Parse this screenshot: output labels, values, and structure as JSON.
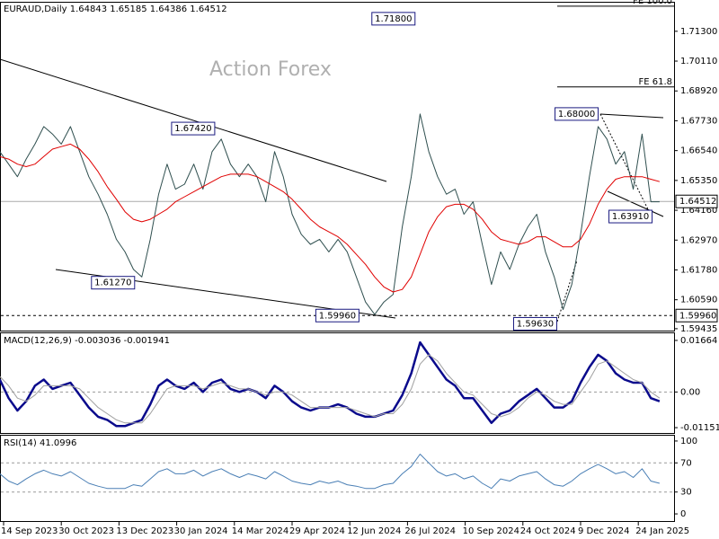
{
  "chart_data": [
    {
      "type": "line",
      "title": "EURAUD,Daily  1.64843 1.65185 1.64386 1.64512",
      "watermark": "Action Forex",
      "x": [
        "2023-09-11",
        "2023-09-18",
        "2023-09-25",
        "2023-10-02",
        "2023-10-09",
        "2023-10-16",
        "2023-10-23",
        "2023-10-30",
        "2023-11-06",
        "2023-11-13",
        "2023-11-20",
        "2023-11-27",
        "2023-12-04",
        "2023-12-11",
        "2023-12-18",
        "2023-12-25",
        "2024-01-01",
        "2024-01-08",
        "2024-01-15",
        "2024-01-22",
        "2024-01-29",
        "2024-02-05",
        "2024-02-12",
        "2024-02-19",
        "2024-02-26",
        "2024-03-04",
        "2024-03-11",
        "2024-03-18",
        "2024-03-25",
        "2024-04-01",
        "2024-04-08",
        "2024-04-15",
        "2024-04-22",
        "2024-04-29",
        "2024-05-06",
        "2024-05-13",
        "2024-05-20",
        "2024-05-27",
        "2024-06-03",
        "2024-06-10",
        "2024-06-17",
        "2024-06-24",
        "2024-07-01",
        "2024-07-08",
        "2024-07-15",
        "2024-07-22",
        "2024-07-29",
        "2024-08-05",
        "2024-08-12",
        "2024-08-19",
        "2024-08-26",
        "2024-09-02",
        "2024-09-09",
        "2024-09-16",
        "2024-09-23",
        "2024-09-30",
        "2024-10-07",
        "2024-10-14",
        "2024-10-21",
        "2024-10-28",
        "2024-11-04",
        "2024-11-11",
        "2024-11-18",
        "2024-11-25",
        "2024-12-02",
        "2024-12-09",
        "2024-12-16",
        "2024-12-23",
        "2024-12-30",
        "2025-01-06",
        "2025-01-13",
        "2025-01-20",
        "2025-01-27",
        "2025-02-03",
        "2025-02-10"
      ],
      "xticks": [
        {
          "value": "2023-09-14",
          "label": "14 Sep 2023"
        },
        {
          "value": "2023-10-30",
          "label": "30 Oct 2023"
        },
        {
          "value": "2023-12-13",
          "label": "13 Dec 2023"
        },
        {
          "value": "2024-01-30",
          "label": "30 Jan 2024"
        },
        {
          "value": "2024-03-14",
          "label": "14 Mar 2024"
        },
        {
          "value": "2024-04-29",
          "label": "29 Apr 2024"
        },
        {
          "value": "2024-06-12",
          "label": "12 Jun 2024"
        },
        {
          "value": "2024-07-26",
          "label": "26 Jul 2024"
        },
        {
          "value": "2024-09-10",
          "label": "10 Sep 2024"
        },
        {
          "value": "2024-10-24",
          "label": "24 Oct 2024"
        },
        {
          "value": "2024-12-09",
          "label": "9 Dec 2024"
        },
        {
          "value": "2025-01-24",
          "label": "24 Jan 2025"
        }
      ],
      "series": [
        {
          "color": "#2f4f4f",
          "values": [
            1.665,
            1.66,
            1.655,
            1.662,
            1.668,
            1.675,
            1.672,
            1.668,
            1.675,
            1.665,
            1.655,
            1.648,
            1.64,
            1.63,
            1.625,
            1.618,
            1.615,
            1.63,
            1.648,
            1.66,
            1.65,
            1.652,
            1.66,
            1.65,
            1.665,
            1.67,
            1.66,
            1.655,
            1.66,
            1.655,
            1.645,
            1.665,
            1.655,
            1.64,
            1.632,
            1.628,
            1.63,
            1.625,
            1.63,
            1.625,
            1.615,
            1.605,
            1.6,
            1.605,
            1.608,
            1.635,
            1.655,
            1.68,
            1.665,
            1.655,
            1.648,
            1.65,
            1.64,
            1.645,
            1.628,
            1.612,
            1.625,
            1.618,
            1.628,
            1.635,
            1.64,
            1.625,
            1.615,
            1.602,
            1.612,
            1.632,
            1.655,
            1.675,
            1.67,
            1.66,
            1.665,
            1.65,
            1.672,
            1.645,
            1.645
          ]
        },
        {
          "color": "#e00000",
          "values": [
            1.663,
            1.662,
            1.66,
            1.659,
            1.66,
            1.663,
            1.666,
            1.667,
            1.668,
            1.666,
            1.662,
            1.657,
            1.651,
            1.646,
            1.641,
            1.638,
            1.637,
            1.638,
            1.64,
            1.642,
            1.645,
            1.647,
            1.649,
            1.651,
            1.653,
            1.655,
            1.656,
            1.656,
            1.656,
            1.655,
            1.653,
            1.651,
            1.649,
            1.646,
            1.642,
            1.638,
            1.635,
            1.633,
            1.631,
            1.628,
            1.624,
            1.62,
            1.615,
            1.611,
            1.609,
            1.61,
            1.615,
            1.624,
            1.633,
            1.639,
            1.643,
            1.644,
            1.644,
            1.642,
            1.638,
            1.633,
            1.63,
            1.629,
            1.628,
            1.629,
            1.631,
            1.631,
            1.629,
            1.627,
            1.627,
            1.63,
            1.636,
            1.644,
            1.65,
            1.654,
            1.655,
            1.655,
            1.655,
            1.654,
            1.653
          ]
        }
      ],
      "ylim": [
        1.5936,
        1.7244
      ],
      "yticks": [
        {
          "value": 1.713,
          "label": "1.71300"
        },
        {
          "value": 1.7011,
          "label": "1.70110"
        },
        {
          "value": 1.6892,
          "label": "1.68920"
        },
        {
          "value": 1.6773,
          "label": "1.67730"
        },
        {
          "value": 1.6654,
          "label": "1.66540"
        },
        {
          "value": 1.6535,
          "label": "1.65350"
        },
        {
          "value": 1.6416,
          "label": "1.64160"
        },
        {
          "value": 1.6297,
          "label": "1.62970"
        },
        {
          "value": 1.6178,
          "label": "1.61780"
        },
        {
          "value": 1.6059,
          "label": "1.60590"
        },
        1.59435
      ],
      "last": 1.64512,
      "support": {
        "value": 1.5996,
        "label": "1.59960"
      },
      "fibo": [
        {
          "value": 1.6908,
          "label": "FE 61.8"
        },
        {
          "value": 1.723,
          "label": "FE 100.0"
        }
      ],
      "annotations": [
        {
          "x": "2023-12-26",
          "value": 1.6127,
          "label": "1.61270"
        },
        {
          "x": "2024-02-28",
          "value": 1.6742,
          "label": "1.67420"
        },
        {
          "x": "2024-06-19",
          "value": 1.5996,
          "label": "1.59960"
        },
        {
          "x": "2024-08-01",
          "value": 1.718,
          "label": "1.71800"
        },
        {
          "x": "2024-11-20",
          "value": 1.5963,
          "label": "1.59630"
        },
        {
          "x": "2024-12-23",
          "value": 1.68,
          "label": "1.68000"
        },
        {
          "x": "2025-02-04",
          "value": 1.6391,
          "label": "1.63910"
        }
      ]
    },
    {
      "type": "line",
      "title": "MACD(12,26,9) -0.003036 -0.001941",
      "series": [
        {
          "color": "#0a0a8c",
          "values": [
            0.004,
            -0.002,
            -0.006,
            -0.003,
            0.002,
            0.004,
            0.001,
            0.002,
            0.003,
            -0.001,
            -0.005,
            -0.008,
            -0.009,
            -0.011,
            -0.011,
            -0.01,
            -0.009,
            -0.004,
            0.002,
            0.004,
            0.002,
            0.001,
            0.003,
            0.0,
            0.003,
            0.004,
            0.001,
            0.0,
            0.001,
            0.0,
            -0.002,
            0.002,
            0.0,
            -0.003,
            -0.005,
            -0.006,
            -0.005,
            -0.005,
            -0.004,
            -0.005,
            -0.007,
            -0.008,
            -0.008,
            -0.007,
            -0.006,
            -0.001,
            0.006,
            0.016,
            0.012,
            0.008,
            0.004,
            0.002,
            -0.002,
            -0.002,
            -0.006,
            -0.01,
            -0.007,
            -0.006,
            -0.003,
            -0.001,
            0.001,
            -0.002,
            -0.005,
            -0.005,
            -0.003,
            0.003,
            0.008,
            0.012,
            0.01,
            0.006,
            0.004,
            0.003,
            0.003,
            -0.002,
            -0.003
          ]
        },
        {
          "color": "#a0a0a0",
          "values": [
            0.005,
            0.002,
            -0.002,
            -0.003,
            -0.001,
            0.002,
            0.002,
            0.002,
            0.002,
            0.001,
            -0.002,
            -0.005,
            -0.007,
            -0.009,
            -0.01,
            -0.01,
            -0.01,
            -0.007,
            -0.003,
            0.001,
            0.002,
            0.002,
            0.002,
            0.001,
            0.002,
            0.003,
            0.002,
            0.001,
            0.001,
            0.0,
            -0.001,
            0.0,
            0.0,
            -0.001,
            -0.003,
            -0.005,
            -0.005,
            -0.005,
            -0.005,
            -0.005,
            -0.006,
            -0.007,
            -0.008,
            -0.007,
            -0.007,
            -0.004,
            0.001,
            0.009,
            0.012,
            0.01,
            0.006,
            0.003,
            0.0,
            -0.001,
            -0.004,
            -0.007,
            -0.008,
            -0.007,
            -0.005,
            -0.002,
            0.0,
            -0.001,
            -0.003,
            -0.004,
            -0.004,
            0.0,
            0.004,
            0.009,
            0.01,
            0.008,
            0.006,
            0.004,
            0.003,
            0.0,
            -0.002
          ]
        }
      ],
      "ylim": [
        -0.01324,
        0.01894
      ],
      "yticks": [
        0.01664,
        {
          "value": 0,
          "label": "0.00"
        },
        -0.011515
      ],
      "levels": [
        0
      ]
    },
    {
      "type": "line",
      "title": "RSI(14) 41.0996",
      "series": [
        {
          "color": "#4a7fb5",
          "values": [
            55,
            45,
            40,
            48,
            55,
            60,
            55,
            52,
            58,
            50,
            42,
            38,
            35,
            35,
            35,
            40,
            38,
            48,
            58,
            62,
            55,
            55,
            60,
            52,
            58,
            62,
            55,
            50,
            55,
            52,
            48,
            58,
            52,
            45,
            42,
            40,
            45,
            42,
            45,
            40,
            38,
            35,
            35,
            40,
            42,
            55,
            65,
            82,
            70,
            58,
            52,
            55,
            48,
            52,
            42,
            35,
            48,
            45,
            52,
            55,
            58,
            48,
            40,
            38,
            45,
            55,
            62,
            68,
            62,
            55,
            58,
            50,
            62,
            45,
            42
          ]
        }
      ],
      "ylim": [
        -9.8,
        107.3
      ],
      "yticks": [
        100,
        70,
        30,
        0
      ],
      "levels": [
        70,
        30
      ]
    }
  ]
}
